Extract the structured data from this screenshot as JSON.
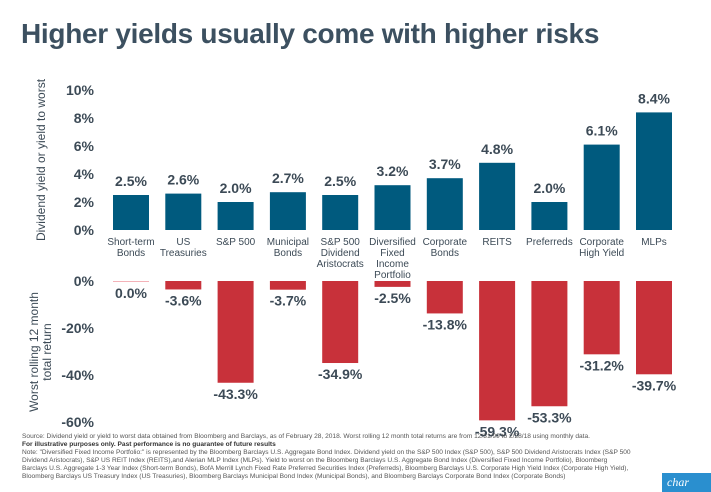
{
  "title": "Higher yields usually come with higher risks",
  "chart_data": [
    {
      "type": "bar",
      "title": "",
      "ylabel": "Dividend yield or yield to worst",
      "xlabel": "",
      "ylim": [
        0,
        10
      ],
      "yticks": [
        0,
        2,
        4,
        6,
        8,
        10
      ],
      "ytick_labels": [
        "0%",
        "2%",
        "4%",
        "6%",
        "8%",
        "10%"
      ],
      "categories": [
        "Short-term Bonds",
        "US Treasuries",
        "S&P 500",
        "Municipal Bonds",
        "S&P 500 Dividend Aristocrats",
        "Diversified Fixed Income Portfolio",
        "Corporate Bonds",
        "REITS",
        "Preferreds",
        "Corporate High Yield",
        "MLPs"
      ],
      "category_lines": [
        [
          "Short-term",
          "Bonds"
        ],
        [
          "US",
          "Treasuries"
        ],
        [
          "S&P 500"
        ],
        [
          "Municipal",
          "Bonds"
        ],
        [
          "S&P 500",
          "Dividend",
          "Aristocrats"
        ],
        [
          "Diversified",
          "Fixed",
          "Income",
          "Portfolio"
        ],
        [
          "Corporate",
          "Bonds"
        ],
        [
          "REITS"
        ],
        [
          "Preferreds"
        ],
        [
          "Corporate",
          "High Yield"
        ],
        [
          "MLPs"
        ]
      ],
      "values": [
        2.5,
        2.6,
        2.0,
        2.7,
        2.5,
        3.2,
        3.7,
        4.8,
        2.0,
        6.1,
        8.4
      ],
      "value_labels": [
        "2.5%",
        "2.6%",
        "2.0%",
        "2.7%",
        "2.5%",
        "3.2%",
        "3.7%",
        "4.8%",
        "2.0%",
        "6.1%",
        "8.4%"
      ],
      "color": "#005a7e",
      "grid": false
    },
    {
      "type": "bar",
      "title": "",
      "ylabel": "Worst rolling 12 month total return",
      "ylabel_lines": [
        "Worst rolling 12 month",
        "total return"
      ],
      "xlabel": "",
      "ylim": [
        -60,
        0
      ],
      "yticks": [
        0,
        -20,
        -40,
        -60
      ],
      "ytick_labels": [
        "0%",
        "-20%",
        "-40%",
        "-60%"
      ],
      "categories": [
        "Short-term Bonds",
        "US Treasuries",
        "S&P 500",
        "Municipal Bonds",
        "S&P 500 Dividend Aristocrats",
        "Diversified Fixed Income Portfolio",
        "Corporate Bonds",
        "REITS",
        "Preferreds",
        "Corporate High Yield",
        "MLPs"
      ],
      "values": [
        0.0,
        -3.6,
        -43.3,
        -3.7,
        -34.9,
        -2.5,
        -13.8,
        -59.3,
        -53.3,
        -31.2,
        -39.7
      ],
      "value_labels": [
        "0.0%",
        "-3.6%",
        "-43.3%",
        "-3.7%",
        "-34.9%",
        "-2.5%",
        "-13.8%",
        "-59.3%",
        "-53.3%",
        "-31.2%",
        "-39.7%"
      ],
      "color": "#c8313a",
      "grid": false
    }
  ],
  "footnotes": {
    "source": "Source: Dividend yield or yield to worst data obtained from Bloomberg and Barclays, as of February 28, 2018. Worst rolling 12 month total returns are from 12/31/99 to 2/28/18 using monthly data.",
    "disclaimer": "For illustrative purposes only. Past performance is no guarantee of future results",
    "note": "Note: \"Diversified Fixed Income Portfolio:\" is represented by the Bloomberg Barclays U.S. Aggregate Bond Index. Dividend yield on the S&P 500 Index (S&P 500), S&P 500 Dividend Aristocrats Index (S&P 500 Dividend Aristocrats), S&P US REIT Index (REITS),and Alerian MLP Index (MLPs). Yield to worst on the Bloomberg Barclays U.S. Aggregate Bond Index (Diversified Fixed Income Portfolio), Bloomberg Barclays U.S. Aggregate 1-3 Year Index (Short-term Bonds), BofA Merrill Lynch Fixed Rate Preferred Securities Index (Preferreds), Bloomberg Barclays U.S. Corporate High Yield Index (Corporate High Yield), Bloomberg Barclays US Treasury Index (US Treasuries), Bloomberg Barclays Municipal Bond Index (Municipal Bonds), and Bloomberg Barclays Corporate Bond Index (Corporate Bonds)"
  },
  "logo": {
    "text": "char",
    "color": "#2a8fcf"
  }
}
